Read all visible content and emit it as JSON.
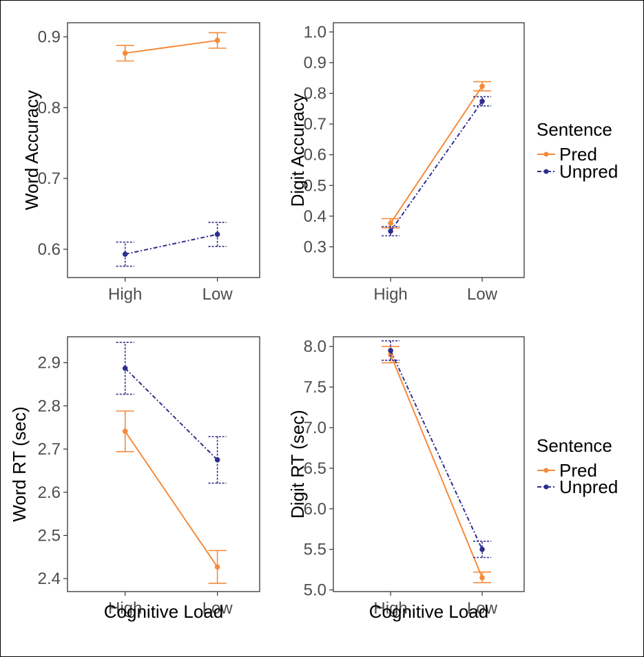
{
  "figure": {
    "legend": {
      "title": "Sentence",
      "entries": [
        {
          "name": "Pred",
          "color": "#f58a3a",
          "linestyle": "solid"
        },
        {
          "name": "Unpred",
          "color": "#2e2e8f",
          "linestyle": "dashdot"
        }
      ]
    },
    "shared_xlabel": "Cognitive Load"
  },
  "chart_data": [
    {
      "type": "line",
      "ylabel": "Word Accuracy",
      "xlabel": "",
      "categories": [
        "High",
        "Low"
      ],
      "ylim": [
        0.56,
        0.92
      ],
      "yticks": [
        0.6,
        0.7,
        0.8,
        0.9
      ],
      "yticklabels": [
        "0.6",
        "0.7",
        "0.8",
        "0.9"
      ],
      "series": [
        {
          "name": "Pred",
          "values": [
            0.877,
            0.895
          ],
          "err_low": [
            0.866,
            0.884
          ],
          "err_high": [
            0.888,
            0.906
          ]
        },
        {
          "name": "Unpred",
          "values": [
            0.593,
            0.621
          ],
          "err_low": [
            0.576,
            0.604
          ],
          "err_high": [
            0.61,
            0.638
          ]
        }
      ]
    },
    {
      "type": "line",
      "ylabel": "Digit Accuracy",
      "xlabel": "",
      "categories": [
        "High",
        "Low"
      ],
      "ylim": [
        0.2,
        1.03
      ],
      "yticks": [
        0.3,
        0.4,
        0.5,
        0.6,
        0.7,
        0.8,
        0.9,
        1.0
      ],
      "yticklabels": [
        "0.3",
        "0.4",
        "0.5",
        "0.6",
        "0.7",
        "0.8",
        "0.9",
        "1.0"
      ],
      "series": [
        {
          "name": "Pred",
          "values": [
            0.377,
            0.823
          ],
          "err_low": [
            0.362,
            0.808
          ],
          "err_high": [
            0.392,
            0.838
          ]
        },
        {
          "name": "Unpred",
          "values": [
            0.351,
            0.774
          ],
          "err_low": [
            0.336,
            0.759
          ],
          "err_high": [
            0.366,
            0.789
          ]
        }
      ]
    },
    {
      "type": "line",
      "ylabel": "Word RT (sec)",
      "xlabel": "Cognitive Load",
      "categories": [
        "High",
        "Low"
      ],
      "ylim": [
        2.37,
        2.96
      ],
      "yticks": [
        2.4,
        2.5,
        2.6,
        2.7,
        2.8,
        2.9
      ],
      "yticklabels": [
        "2.4",
        "2.5",
        "2.6",
        "2.7",
        "2.8",
        "2.9"
      ],
      "series": [
        {
          "name": "Pred",
          "values": [
            2.741,
            2.427
          ],
          "err_low": [
            2.694,
            2.389
          ],
          "err_high": [
            2.788,
            2.465
          ]
        },
        {
          "name": "Unpred",
          "values": [
            2.887,
            2.675
          ],
          "err_low": [
            2.827,
            2.621
          ],
          "err_high": [
            2.947,
            2.729
          ]
        }
      ]
    },
    {
      "type": "line",
      "ylabel": "Digit RT (sec)",
      "xlabel": "Cognitive Load",
      "categories": [
        "High",
        "Low"
      ],
      "ylim": [
        4.98,
        8.12
      ],
      "yticks": [
        5.0,
        5.5,
        6.0,
        6.5,
        7.0,
        7.5,
        8.0
      ],
      "yticklabels": [
        "5.0",
        "5.5",
        "6.0",
        "6.5",
        "7.0",
        "7.5",
        "8.0"
      ],
      "series": [
        {
          "name": "Pred",
          "values": [
            7.9,
            5.15
          ],
          "err_low": [
            7.8,
            5.09
          ],
          "err_high": [
            8.0,
            5.22
          ]
        },
        {
          "name": "Unpred",
          "values": [
            7.95,
            5.5
          ],
          "err_low": [
            7.83,
            5.4
          ],
          "err_high": [
            8.07,
            5.6
          ]
        }
      ]
    }
  ]
}
